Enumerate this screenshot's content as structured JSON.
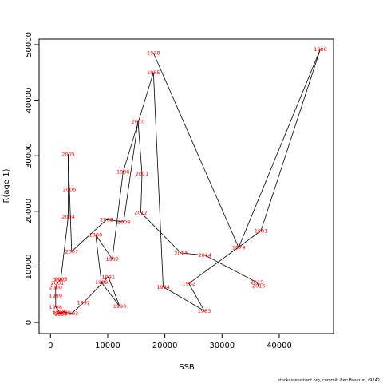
{
  "chart_data": {
    "type": "scatter",
    "xlabel": "SSB",
    "ylabel": "R(age 1)",
    "xlim": [
      -2000,
      49500
    ],
    "ylim": [
      -2000,
      51000
    ],
    "x_ticks": [
      0,
      10000,
      20000,
      30000,
      40000
    ],
    "y_ticks": [
      0,
      10000,
      20000,
      30000,
      40000,
      50000
    ],
    "connect_in_year_order": true,
    "line_color": "#000000",
    "label_color": "#ff0000",
    "points": [
      {
        "year": "1978",
        "x": 18000,
        "y": 48500
      },
      {
        "year": "1979",
        "x": 32900,
        "y": 13500
      },
      {
        "year": "1980",
        "x": 47200,
        "y": 49200
      },
      {
        "year": "1981",
        "x": 36800,
        "y": 16500
      },
      {
        "year": "1982",
        "x": 24200,
        "y": 7000
      },
      {
        "year": "1983",
        "x": 26900,
        "y": 2100
      },
      {
        "year": "1984",
        "x": 19700,
        "y": 6400
      },
      {
        "year": "1985",
        "x": 18000,
        "y": 45000
      },
      {
        "year": "1986",
        "x": 12700,
        "y": 27100
      },
      {
        "year": "1987",
        "x": 10800,
        "y": 11400
      },
      {
        "year": "1988",
        "x": 7900,
        "y": 15800
      },
      {
        "year": "1989",
        "x": 8900,
        "y": 7200
      },
      {
        "year": "1990",
        "x": 12100,
        "y": 2900
      },
      {
        "year": "1991",
        "x": 10100,
        "y": 8200
      },
      {
        "year": "1992",
        "x": 5800,
        "y": 3600
      },
      {
        "year": "1993",
        "x": 3700,
        "y": 1600
      },
      {
        "year": "1994",
        "x": 2300,
        "y": 1900
      },
      {
        "year": "1995",
        "x": 1600,
        "y": 1700
      },
      {
        "year": "1996",
        "x": 1400,
        "y": 1800
      },
      {
        "year": "1997",
        "x": 1800,
        "y": 1500
      },
      {
        "year": "1998",
        "x": 900,
        "y": 2800
      },
      {
        "year": "1999",
        "x": 900,
        "y": 4800
      },
      {
        "year": "2000",
        "x": 900,
        "y": 6300
      },
      {
        "year": "2001",
        "x": 1200,
        "y": 7100
      },
      {
        "year": "2002",
        "x": 1600,
        "y": 7600
      },
      {
        "year": "2003",
        "x": 1800,
        "y": 7800
      },
      {
        "year": "2004",
        "x": 3100,
        "y": 19000
      },
      {
        "year": "2005",
        "x": 3100,
        "y": 30300
      },
      {
        "year": "2006",
        "x": 3300,
        "y": 24000
      },
      {
        "year": "2007",
        "x": 3700,
        "y": 12800
      },
      {
        "year": "2008",
        "x": 9800,
        "y": 18500
      },
      {
        "year": "2009",
        "x": 12800,
        "y": 18100
      },
      {
        "year": "2010",
        "x": 15300,
        "y": 36200
      },
      {
        "year": "2011",
        "x": 16000,
        "y": 26800
      },
      {
        "year": "2012",
        "x": 15800,
        "y": 19800
      },
      {
        "year": "2013",
        "x": 22800,
        "y": 12500
      },
      {
        "year": "2014",
        "x": 27000,
        "y": 12100
      },
      {
        "year": "2015",
        "x": 36100,
        "y": 7200
      },
      {
        "year": "2016",
        "x": 36400,
        "y": 6600
      }
    ]
  },
  "footer": {
    "credit": "stockassessment.org, commit: Ben Baserun, r9242"
  }
}
